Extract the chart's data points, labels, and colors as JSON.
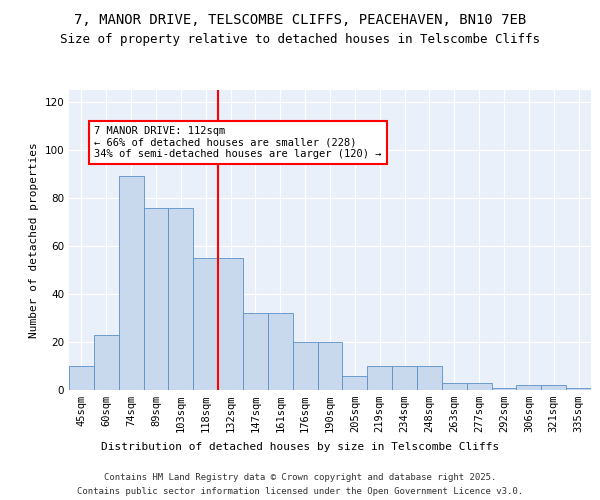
{
  "title1": "7, MANOR DRIVE, TELSCOMBE CLIFFS, PEACEHAVEN, BN10 7EB",
  "title2": "Size of property relative to detached houses in Telscombe Cliffs",
  "xlabel": "Distribution of detached houses by size in Telscombe Cliffs",
  "ylabel": "Number of detached properties",
  "categories": [
    "45sqm",
    "60sqm",
    "74sqm",
    "89sqm",
    "103sqm",
    "118sqm",
    "132sqm",
    "147sqm",
    "161sqm",
    "176sqm",
    "190sqm",
    "205sqm",
    "219sqm",
    "234sqm",
    "248sqm",
    "263sqm",
    "277sqm",
    "292sqm",
    "306sqm",
    "321sqm",
    "335sqm"
  ],
  "values": [
    10,
    23,
    89,
    76,
    76,
    55,
    55,
    32,
    32,
    20,
    20,
    6,
    10,
    10,
    10,
    3,
    3,
    1,
    2,
    2,
    1
  ],
  "bar_color": "#c9d9ed",
  "bar_edge_color": "#5b8fc9",
  "vline_x": 5.5,
  "vline_color": "red",
  "annotation_text": "7 MANOR DRIVE: 112sqm\n← 66% of detached houses are smaller (228)\n34% of semi-detached houses are larger (120) →",
  "box_color": "white",
  "box_edge_color": "red",
  "ylim": [
    0,
    125
  ],
  "yticks": [
    0,
    20,
    40,
    60,
    80,
    100,
    120
  ],
  "bg_color": "#eaf0f9",
  "footer1": "Contains HM Land Registry data © Crown copyright and database right 2025.",
  "footer2": "Contains public sector information licensed under the Open Government Licence v3.0.",
  "title_fontsize": 10,
  "subtitle_fontsize": 9,
  "axis_fontsize": 8,
  "tick_fontsize": 7.5
}
